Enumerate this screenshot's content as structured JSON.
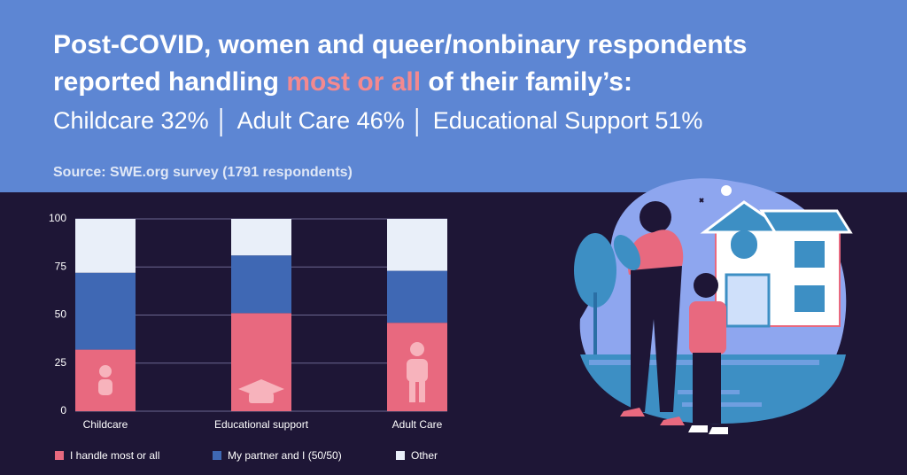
{
  "chart_data": {
    "type": "stacked_bar",
    "title_parts": [
      "Post-COVID, women and queer/nonbinary respondents",
      "reported handling ",
      "most or all",
      " of their family’s:"
    ],
    "subtitle_parts": [
      "Childcare 32%",
      "Adult Care 46%",
      "Educational Support 51%"
    ],
    "source": "Source: SWE.org survey (1791 respondents)",
    "categories": [
      "Childcare",
      "Educational support",
      "Adult Care"
    ],
    "series": [
      {
        "name": "I handle most or all",
        "color": "#e8697f",
        "values": [
          32,
          51,
          46
        ]
      },
      {
        "name": "My partner and I (50/50)",
        "color": "#3f68b4",
        "values": [
          40,
          30,
          27
        ]
      },
      {
        "name": "Other",
        "color": "#e9eff9",
        "values": [
          28,
          19,
          27
        ]
      }
    ],
    "ylim": [
      0,
      100
    ],
    "yticks": [
      0,
      25,
      50,
      75,
      100
    ],
    "grid": true
  }
}
